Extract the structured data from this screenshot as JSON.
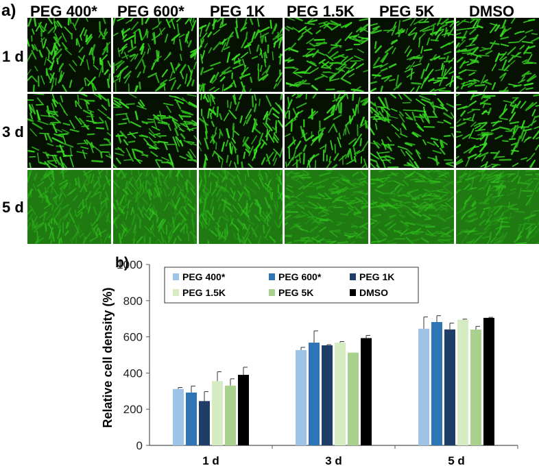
{
  "panel_a": {
    "label": "a)",
    "columns": [
      "PEG 400*",
      "PEG 600*",
      "PEG 1K",
      "PEG 1.5K",
      "PEG 5K",
      "DMSO"
    ],
    "rows": [
      "1 d",
      "3 d",
      "5 d"
    ],
    "tile_color": "#39c021",
    "background_color": "#061003"
  },
  "panel_b": {
    "label": "b)"
  },
  "chart_data": {
    "type": "bar",
    "title": "",
    "xlabel": "",
    "ylabel": "Relative cell density (%)",
    "ylim": [
      0,
      1000
    ],
    "yticks": [
      "0",
      "200",
      "400",
      "600",
      "800",
      "1000"
    ],
    "categories": [
      "1 d",
      "3 d",
      "5 d"
    ],
    "legend_position": "top",
    "series": [
      {
        "name": "PEG 400*",
        "color": "#9dc3e6",
        "values": [
          312,
          527,
          645
        ],
        "errors": [
          8,
          15,
          65
        ]
      },
      {
        "name": "PEG 600*",
        "color": "#2e75b6",
        "values": [
          292,
          568,
          682
        ],
        "errors": [
          36,
          65,
          35
        ]
      },
      {
        "name": "PEG 1K",
        "color": "#1f3e67",
        "values": [
          245,
          553,
          641
        ],
        "errors": [
          52,
          4,
          35
        ]
      },
      {
        "name": "PEG 1.5K",
        "color": "#d5ebc1",
        "values": [
          355,
          568,
          695
        ],
        "errors": [
          52,
          6,
          3
        ]
      },
      {
        "name": "PEG 5K",
        "color": "#a9d18e",
        "values": [
          330,
          513,
          640
        ],
        "errors": [
          38,
          0,
          18
        ]
      },
      {
        "name": "DMSO",
        "color": "#000000",
        "values": [
          390,
          593,
          705
        ],
        "errors": [
          42,
          15,
          3
        ]
      }
    ]
  }
}
